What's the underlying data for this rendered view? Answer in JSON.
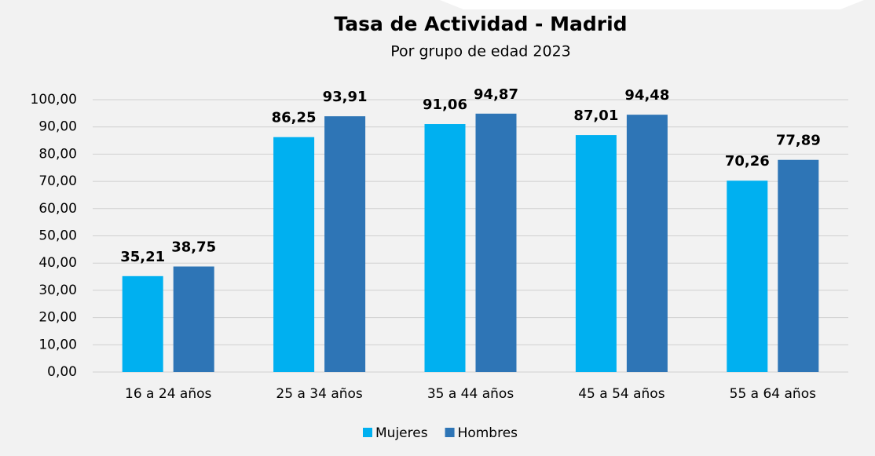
{
  "chart_data": {
    "type": "bar",
    "title": "Tasa de Actividad - Madrid",
    "subtitle": "Por grupo de edad 2023",
    "categories": [
      "16 a 24 años",
      "25 a 34 años",
      "35 a 44 años",
      "45 a 54 años",
      "55 a 64 años"
    ],
    "series": [
      {
        "name": "Mujeres",
        "color": "#00b0f0",
        "values": [
          35.21,
          86.25,
          91.06,
          87.01,
          70.26
        ],
        "value_labels": [
          "35,21",
          "86,25",
          "91,06",
          "87,01",
          "70,26"
        ]
      },
      {
        "name": "Hombres",
        "color": "#2e75b6",
        "values": [
          38.75,
          93.91,
          94.87,
          94.48,
          77.89
        ],
        "value_labels": [
          "38,75",
          "93,91",
          "94,87",
          "94,48",
          "77,89"
        ]
      }
    ],
    "ylim": [
      0,
      100
    ],
    "yticks": [
      {
        "value": 0,
        "label": "0,00"
      },
      {
        "value": 10,
        "label": "10,00"
      },
      {
        "value": 20,
        "label": "20,00"
      },
      {
        "value": 30,
        "label": "30,00"
      },
      {
        "value": 40,
        "label": "40,00"
      },
      {
        "value": 50,
        "label": "50,00"
      },
      {
        "value": 60,
        "label": "60,00"
      },
      {
        "value": 70,
        "label": "70,00"
      },
      {
        "value": 80,
        "label": "80,00"
      },
      {
        "value": 90,
        "label": "90,00"
      },
      {
        "value": 100,
        "label": "100,00"
      }
    ],
    "grid": true
  }
}
